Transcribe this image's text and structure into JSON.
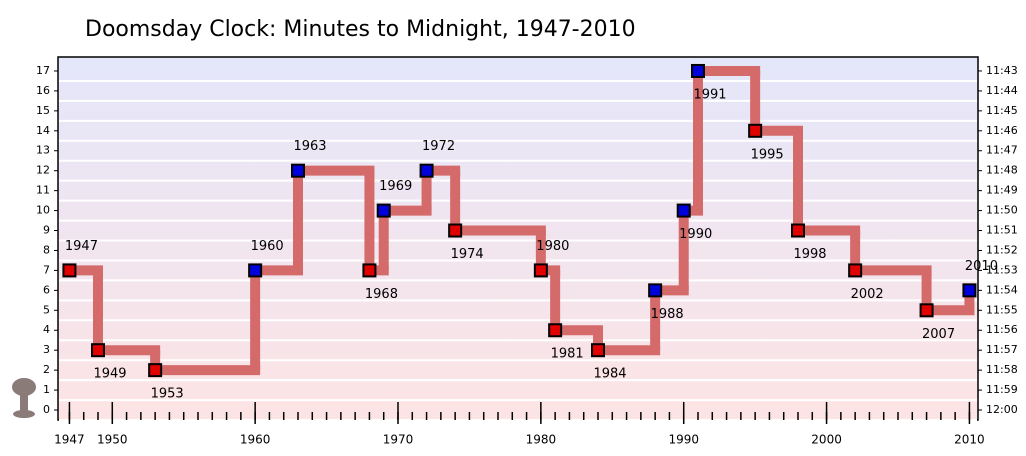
{
  "chart_data": {
    "type": "step",
    "title": "Doomsday Clock: Minutes to Midnight, 1947-2010",
    "x": [
      1947,
      1949,
      1953,
      1960,
      1963,
      1968,
      1969,
      1972,
      1974,
      1980,
      1981,
      1984,
      1988,
      1990,
      1991,
      1995,
      1998,
      2002,
      2007,
      2010
    ],
    "values": [
      7,
      3,
      2,
      7,
      12,
      7,
      10,
      12,
      9,
      7,
      4,
      3,
      6,
      10,
      17,
      14,
      9,
      7,
      5,
      6
    ],
    "colors": [
      "#e00000",
      "#e00000",
      "#e00000",
      "#0000dd",
      "#0000dd",
      "#e00000",
      "#0000dd",
      "#0000dd",
      "#e00000",
      "#e00000",
      "#e00000",
      "#e00000",
      "#0000dd",
      "#0000dd",
      "#0000dd",
      "#e00000",
      "#e00000",
      "#e00000",
      "#e00000",
      "#0000dd"
    ],
    "label_side": [
      "above",
      "below",
      "below",
      "above",
      "above",
      "below",
      "above",
      "above",
      "below",
      "above",
      "below",
      "below",
      "below",
      "below",
      "below",
      "below",
      "below",
      "below",
      "below",
      "above"
    ],
    "line_color": "#d46a6a",
    "xlim": [
      1946.2,
      2010.6
    ],
    "xticks": [
      1947,
      1950,
      1960,
      1970,
      1980,
      1990,
      2000,
      2010
    ],
    "xminorticks": [
      1947,
      1948,
      1949,
      1950,
      1951,
      1952,
      1953,
      1954,
      1955,
      1956,
      1957,
      1958,
      1959,
      1960,
      1961,
      1962,
      1963,
      1964,
      1965,
      1966,
      1967,
      1968,
      1969,
      1970,
      1971,
      1972,
      1973,
      1974,
      1975,
      1976,
      1977,
      1978,
      1979,
      1980,
      1981,
      1982,
      1983,
      1984,
      1985,
      1986,
      1987,
      1988,
      1989,
      1990,
      1991,
      1992,
      1993,
      1994,
      1995,
      1996,
      1997,
      1998,
      1999,
      2000,
      2001,
      2002,
      2003,
      2004,
      2005,
      2006,
      2007,
      2008,
      2009,
      2010
    ],
    "ylim": [
      -0.5,
      17.7
    ],
    "yticks": [
      0,
      1,
      2,
      3,
      4,
      5,
      6,
      7,
      8,
      9,
      10,
      11,
      12,
      13,
      14,
      15,
      16,
      17
    ],
    "y2lim": [
      -0.5,
      17.7
    ],
    "y2ticks": [
      {
        "value": 0,
        "label": "12:00"
      },
      {
        "value": 1,
        "label": "11:59"
      },
      {
        "value": 2,
        "label": "11:58"
      },
      {
        "value": 3,
        "label": "11:57"
      },
      {
        "value": 4,
        "label": "11:56"
      },
      {
        "value": 5,
        "label": "11:55"
      },
      {
        "value": 6,
        "label": "11:54"
      },
      {
        "value": 7,
        "label": "11:53"
      },
      {
        "value": 8,
        "label": "11:52"
      },
      {
        "value": 9,
        "label": "11:51"
      },
      {
        "value": 10,
        "label": "11:50"
      },
      {
        "value": 11,
        "label": "11:49"
      },
      {
        "value": 12,
        "label": "11:48"
      },
      {
        "value": 13,
        "label": "11:47"
      },
      {
        "value": 14,
        "label": "11:46"
      },
      {
        "value": 15,
        "label": "11:45"
      },
      {
        "value": 16,
        "label": "11:44"
      },
      {
        "value": 17,
        "label": "11:43"
      }
    ],
    "zero_color": "#e00000",
    "grid": true
  }
}
